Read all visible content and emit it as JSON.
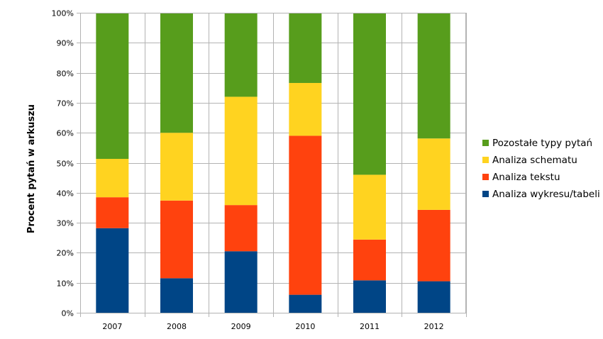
{
  "chart_data": {
    "type": "bar",
    "stacked": true,
    "percent": true,
    "title": "",
    "xlabel": "",
    "ylabel": "Procent pytań w arkuszu",
    "ylim": [
      0,
      100
    ],
    "y_ticks": [
      "0%",
      "10%",
      "20%",
      "30%",
      "40%",
      "50%",
      "60%",
      "70%",
      "80%",
      "90%",
      "100%"
    ],
    "categories": [
      "2007",
      "2008",
      "2009",
      "2010",
      "2011",
      "2012"
    ],
    "series": [
      {
        "name": "Analiza wykresu/tabeli",
        "color": "#004586",
        "values": [
          28.2,
          11.5,
          20.5,
          6.0,
          10.8,
          10.5
        ]
      },
      {
        "name": "Analiza tekstu",
        "color": "#ff420e",
        "values": [
          10.3,
          25.9,
          15.4,
          53.0,
          13.6,
          23.8
        ]
      },
      {
        "name": "Analiza schematu",
        "color": "#ffd320",
        "values": [
          12.8,
          22.6,
          36.1,
          17.6,
          21.6,
          23.8
        ]
      },
      {
        "name": "Pozostałe typy pytań",
        "color": "#579d1c",
        "values": [
          48.7,
          40.0,
          28.0,
          23.4,
          54.0,
          41.9
        ]
      }
    ],
    "legend_order": [
      3,
      2,
      1,
      0
    ],
    "grid": true,
    "legend": "right"
  }
}
